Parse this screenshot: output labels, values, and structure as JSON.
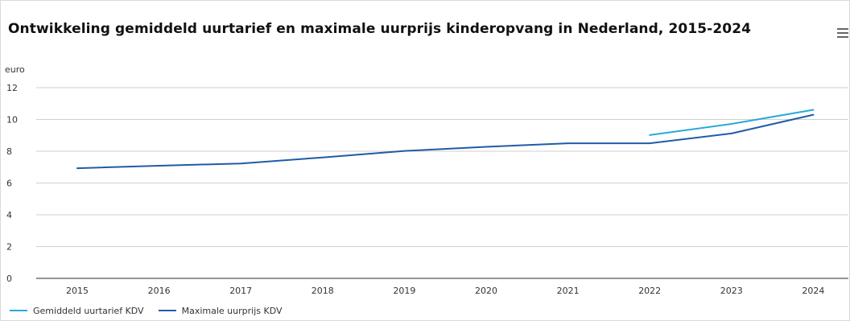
{
  "title": "Ontwikkeling gemiddeld uurtarief en maximale uurprijs kinderopvang in Nederland, 2015-2024",
  "menu_icon": "hamburger-menu-icon",
  "chart_data": {
    "type": "line",
    "ylabel": "euro",
    "xlabel": "",
    "x": [
      "2015",
      "2016",
      "2017",
      "2018",
      "2019",
      "2020",
      "2021",
      "2022",
      "2023",
      "2024"
    ],
    "ylim": [
      0,
      12
    ],
    "yticks": [
      0,
      2,
      4,
      6,
      8,
      10,
      12
    ],
    "grid": true,
    "legend_position": "bottom-left",
    "series": [
      {
        "name": "Gemiddeld uurtarief KDV",
        "color": "#29a9d8",
        "values": [
          null,
          null,
          null,
          null,
          null,
          null,
          null,
          9.02,
          9.72,
          10.61
        ]
      },
      {
        "name": "Maximale uurprijs KDV",
        "color": "#1f5ba8",
        "values": [
          6.93,
          7.09,
          7.23,
          7.61,
          8.02,
          8.28,
          8.5,
          8.5,
          9.12,
          10.3
        ]
      }
    ]
  }
}
